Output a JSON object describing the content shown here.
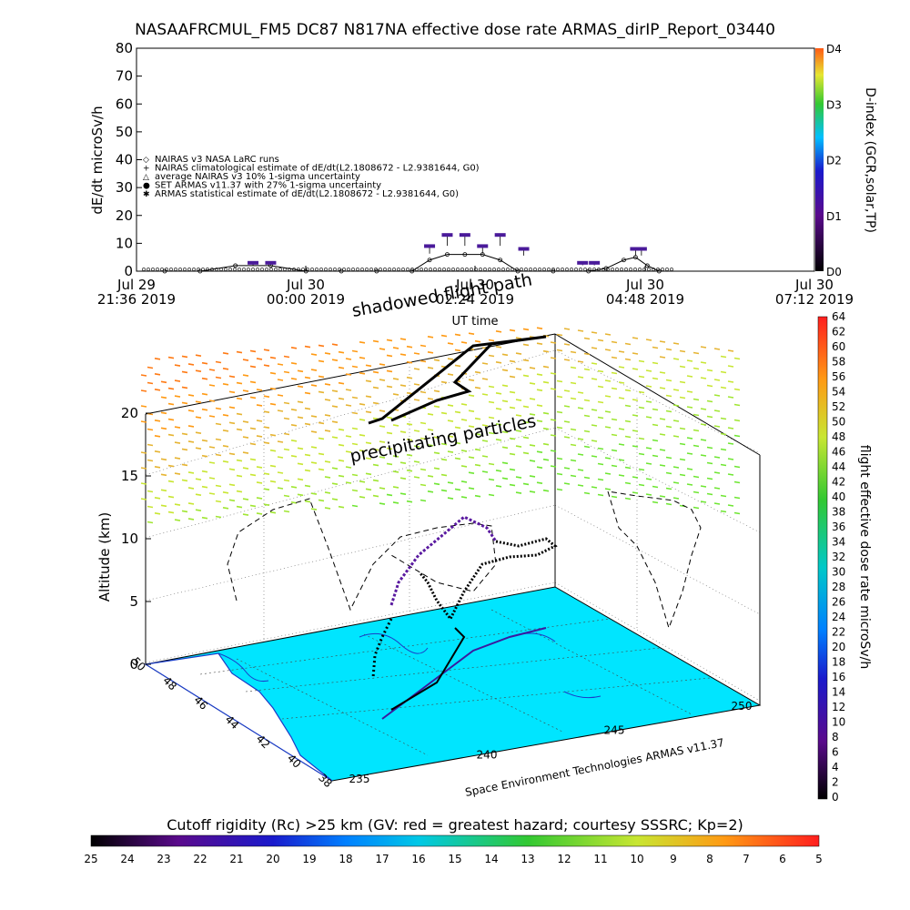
{
  "title": "NASAAFRCMUL_FM5 DC87 N817NA effective dose rate ARMAS_dirIP_Report_03440",
  "top_panel": {
    "ylabel": "dE/dt microSv/h",
    "xlabel": "UT time",
    "right_label": "D-index (GCR,solar,TP)",
    "yticks": [
      "0",
      "10",
      "20",
      "30",
      "40",
      "50",
      "60",
      "70",
      "80"
    ],
    "d_ticks": [
      "D0",
      "D1",
      "D2",
      "D3",
      "D4"
    ],
    "xticks": [
      {
        "l1": "Jul 29",
        "l2": "21:36 2019"
      },
      {
        "l1": "Jul 30",
        "l2": "00:00 2019"
      },
      {
        "l1": "Jul 30",
        "l2": "02:24 2019"
      },
      {
        "l1": "Jul 30",
        "l2": "04:48 2019"
      },
      {
        "l1": "Jul 30",
        "l2": "07:12 2019"
      }
    ],
    "legend": [
      "NAIRAS v3 NASA LaRC runs",
      "NAIRAS climatological estimate of dE/dt(L2.1808672 - L2.9381644, G0)",
      "average NAIRAS v3 10% 1-sigma uncertainty",
      "SET ARMAS v11.37 with 27% 1-sigma uncertainty",
      "ARMAS statistical estimate of dE/dt(L2.1808672 - L2.9381644, G0)"
    ]
  },
  "annotations": {
    "shadowed": "shadowed flight path",
    "precip": "precipitating particles",
    "credit": "Space Environment Technologies ARMAS v11.37"
  },
  "main_panel": {
    "zlabel": "Altitude (km)",
    "zticks": [
      "0",
      "5",
      "10",
      "15",
      "20"
    ],
    "lat_ticks": [
      "38",
      "40",
      "42",
      "44",
      "46",
      "48",
      "50"
    ],
    "lon_ticks": [
      "235",
      "240",
      "245",
      "250"
    ]
  },
  "right_colorbar": {
    "label": "flight effective dose rate microSv/h",
    "ticks": [
      "0",
      "2",
      "4",
      "6",
      "8",
      "10",
      "12",
      "14",
      "16",
      "18",
      "20",
      "22",
      "24",
      "26",
      "28",
      "30",
      "32",
      "34",
      "36",
      "38",
      "40",
      "42",
      "44",
      "46",
      "48",
      "50",
      "52",
      "54",
      "56",
      "58",
      "60",
      "62",
      "64"
    ]
  },
  "bottom_colorbar": {
    "title": "Cutoff rigidity (Rc) >25 km (GV: red = greatest hazard; courtesy SSSRC; Kp=2)",
    "ticks": [
      "25",
      "24",
      "23",
      "22",
      "21",
      "20",
      "19",
      "18",
      "17",
      "16",
      "15",
      "14",
      "13",
      "12",
      "11",
      "10",
      "9",
      "8",
      "7",
      "6",
      "5"
    ]
  },
  "chart_data": {
    "type": "scatter",
    "title": "NASAAFRCMUL_FM5 DC87 N817NA effective dose rate ARMAS_dirIP_Report_03440",
    "xlabel": "UT time",
    "ylabel": "dE/dt microSv/h",
    "ylim": [
      0,
      80
    ],
    "xlim": [
      "Jul 29 21:36 2019",
      "Jul 30 07:12 2019"
    ],
    "series": [
      {
        "name": "NAIRAS v3 NASA LaRC runs",
        "x": [
          "22:00",
          "22:30",
          "23:00",
          "23:30",
          "00:00",
          "00:30",
          "01:00",
          "01:30",
          "01:45",
          "02:00",
          "02:15",
          "02:30",
          "02:45",
          "03:00",
          "03:30",
          "04:00",
          "04:15",
          "04:30",
          "04:40",
          "04:50",
          "05:00"
        ],
        "y": [
          0,
          0,
          2,
          2,
          0,
          0,
          0,
          0,
          4,
          6,
          6,
          6,
          4,
          0,
          0,
          0,
          1,
          4,
          5,
          2,
          0
        ]
      },
      {
        "name": "SET ARMAS v11.37 with 27% 1-sigma uncertainty",
        "x": [
          "23:15",
          "23:30",
          "01:45",
          "02:00",
          "02:15",
          "02:30",
          "02:45",
          "03:05",
          "03:55",
          "04:05",
          "04:40",
          "04:45"
        ],
        "y": [
          3,
          3,
          9,
          13,
          13,
          9,
          13,
          8,
          3,
          3,
          8,
          8
        ]
      }
    ]
  }
}
